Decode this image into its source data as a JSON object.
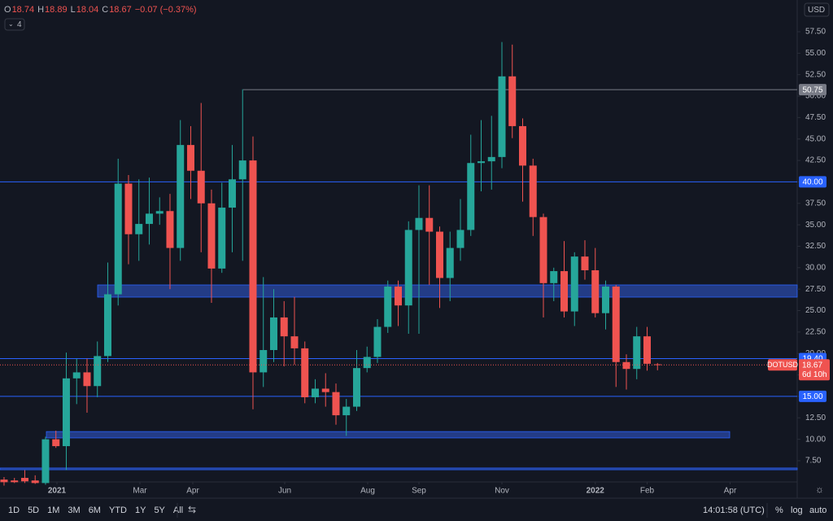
{
  "chart_data": {
    "type": "candlestick",
    "symbol": "DOTUSD",
    "currency": "USD",
    "header": {
      "o_label": "O",
      "open": "18.74",
      "h_label": "H",
      "high": "18.89",
      "l_label": "L",
      "low": "18.04",
      "c_label": "C",
      "close": "18.67",
      "change": "−0.07 (−0.37%)",
      "indicators": "4"
    },
    "up_color": "#26a69a",
    "down_color": "#ef5350",
    "open": [
      5.3,
      5.2,
      5.5,
      5.2,
      4.9,
      10.0,
      9.2,
      17.1,
      17.8,
      16.2,
      19.7,
      26.9,
      39.8,
      33.9,
      35.1,
      36.3,
      36.6,
      32.3,
      44.3,
      41.3,
      37.5,
      29.9,
      37.0,
      40.3,
      42.5,
      17.8,
      20.4,
      24.2,
      22.0,
      20.6,
      14.9,
      15.9,
      15.5,
      12.8,
      13.8,
      18.3,
      19.6,
      23.1,
      27.8,
      25.6,
      34.4,
      35.8,
      34.2,
      28.8,
      32.3,
      34.4,
      42.2,
      42.4,
      42.9,
      52.3,
      46.5,
      41.9,
      35.9,
      28.2,
      29.6,
      24.9,
      31.3,
      29.7,
      24.7,
      27.8,
      19.0,
      18.2,
      22.0,
      18.74
    ],
    "high": [
      5.6,
      5.5,
      6.4,
      5.8,
      10.3,
      11.0,
      20.1,
      19.4,
      19.4,
      21.4,
      30.6,
      42.7,
      40.8,
      40.3,
      40.5,
      38.2,
      38.6,
      47.2,
      46.5,
      49.2,
      39.1,
      39.9,
      44.3,
      50.8,
      45.3,
      28.9,
      27.5,
      26.1,
      26.6,
      21.4,
      17.0,
      17.7,
      16.5,
      14.7,
      20.4,
      20.8,
      24.0,
      28.5,
      28.5,
      35.4,
      39.6,
      39.6,
      34.8,
      34.2,
      38.0,
      45.5,
      47.2,
      47.7,
      56.3,
      56.0,
      47.4,
      42.7,
      36.3,
      30.0,
      33.1,
      31.8,
      33.2,
      32.3,
      28.5,
      28.0,
      19.9,
      23.1,
      23.1,
      18.89
    ],
    "low": [
      4.6,
      4.9,
      4.9,
      4.8,
      4.7,
      9.0,
      6.4,
      14.1,
      13.1,
      14.9,
      19.0,
      25.6,
      30.4,
      30.8,
      32.7,
      35.0,
      27.5,
      30.8,
      38.0,
      31.8,
      25.9,
      29.4,
      31.8,
      30.8,
      13.5,
      16.1,
      19.0,
      18.5,
      18.7,
      14.2,
      14.2,
      13.8,
      11.7,
      10.4,
      13.3,
      17.8,
      18.9,
      22.4,
      23.2,
      22.3,
      22.3,
      28.0,
      25.3,
      26.1,
      30.8,
      33.7,
      38.9,
      39.1,
      41.6,
      45.1,
      37.7,
      33.7,
      24.2,
      26.1,
      24.2,
      23.2,
      28.6,
      24.2,
      22.8,
      16.1,
      15.8,
      17.0,
      18.0,
      18.04
    ],
    "close": [
      5.0,
      5.0,
      5.1,
      4.9,
      10.0,
      9.2,
      17.1,
      17.8,
      16.2,
      19.7,
      26.9,
      39.8,
      33.9,
      35.1,
      36.3,
      36.6,
      32.3,
      44.3,
      41.3,
      37.5,
      29.9,
      37.0,
      40.3,
      42.5,
      17.8,
      20.4,
      24.2,
      22.0,
      20.6,
      14.9,
      15.9,
      15.5,
      12.8,
      13.8,
      18.3,
      19.6,
      23.1,
      27.8,
      25.6,
      34.4,
      35.8,
      34.2,
      28.8,
      32.3,
      34.4,
      42.2,
      42.4,
      42.9,
      52.3,
      46.5,
      41.9,
      35.9,
      28.2,
      29.6,
      24.9,
      31.3,
      29.7,
      24.7,
      27.8,
      19.0,
      18.2,
      22.0,
      18.8,
      18.67
    ],
    "last_price_label": "18.67",
    "countdown": "6d 10h",
    "xlim": [
      -0.39,
      76.47
    ],
    "xticks": [
      {
        "value": 5.1,
        "label": "2021"
      },
      {
        "value": 13.1,
        "label": "Mar"
      },
      {
        "value": 18.2,
        "label": "Apr"
      },
      {
        "value": 27.06,
        "label": "Jun"
      },
      {
        "value": 35.06,
        "label": "Aug"
      },
      {
        "value": 40,
        "label": "Sep"
      },
      {
        "value": 48,
        "label": "Nov"
      },
      {
        "value": 57,
        "label": "2022"
      },
      {
        "value": 62,
        "label": "Feb"
      },
      {
        "value": 70,
        "label": "Apr"
      }
    ],
    "ylim": [
      5.03,
      61.2
    ],
    "yticks": [
      {
        "value": 7.5,
        "label": "7.50"
      },
      {
        "value": 10,
        "label": "10.00"
      },
      {
        "value": 12.5,
        "label": "12.50"
      },
      {
        "value": 15,
        "label": "15.00"
      },
      {
        "value": 17.5,
        "label": "17.50"
      },
      {
        "value": 20,
        "label": "20.00"
      },
      {
        "value": 22.5,
        "label": "22.50"
      },
      {
        "value": 25,
        "label": "25.00"
      },
      {
        "value": 27.5,
        "label": "27.50"
      },
      {
        "value": 30,
        "label": "30.00"
      },
      {
        "value": 32.5,
        "label": "32.50"
      },
      {
        "value": 35,
        "label": "35.00"
      },
      {
        "value": 37.5,
        "label": "37.50"
      },
      {
        "value": 40,
        "label": "40.00"
      },
      {
        "value": 42.5,
        "label": "42.50"
      },
      {
        "value": 45,
        "label": "45.00"
      },
      {
        "value": 47.5,
        "label": "47.50"
      },
      {
        "value": 50,
        "label": "50.00"
      },
      {
        "value": 52.5,
        "label": "52.50"
      },
      {
        "value": 55,
        "label": "55.00"
      },
      {
        "value": 57.5,
        "label": "57.50"
      }
    ],
    "levels": [
      {
        "value": 50.75,
        "label": "50.75",
        "color": "#787b86"
      },
      {
        "value": 40,
        "label": "40.00",
        "color": "#2962ff"
      },
      {
        "value": 19.4,
        "label": "19.40",
        "color": "#2962ff"
      },
      {
        "value": 15,
        "label": "15.00",
        "color": "#2962ff"
      }
    ],
    "zones": [
      {
        "low": 26.57,
        "high": 27.99,
        "color": "#2a4aa8"
      },
      {
        "low": 10.16,
        "high": 10.9,
        "color": "#2a4aa8"
      },
      {
        "low": 6.45,
        "high": 6.65,
        "color": "#2a4aa8"
      }
    ],
    "grid": false,
    "toolbar": {
      "ranges": [
        "1D",
        "5D",
        "1M",
        "3M",
        "6M",
        "YTD",
        "1Y",
        "5Y",
        "All"
      ],
      "time": "14:01:58 (UTC)",
      "percent": "%",
      "log": "log",
      "auto": "auto"
    }
  }
}
